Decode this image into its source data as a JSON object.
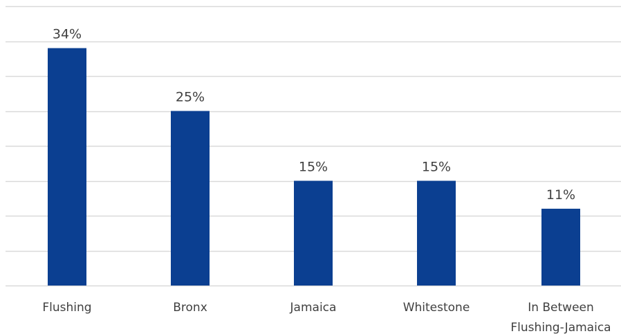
{
  "chart_data": {
    "type": "bar",
    "categories": [
      [
        "Flushing"
      ],
      [
        "Bronx"
      ],
      [
        "Jamaica"
      ],
      [
        "Whitestone"
      ],
      [
        "In Between",
        "Flushing-Jamaica"
      ]
    ],
    "values": [
      34,
      25,
      15,
      15,
      11
    ],
    "data_labels": [
      "34%",
      "25%",
      "15%",
      "15%",
      "11%"
    ],
    "unit": "%",
    "ylim": [
      0,
      40
    ],
    "ytick_step": 5,
    "grid": true,
    "legend": "none",
    "bar_color": "#0B3F91",
    "grid_color": "#D9D9D9",
    "text_color": "#404040"
  }
}
